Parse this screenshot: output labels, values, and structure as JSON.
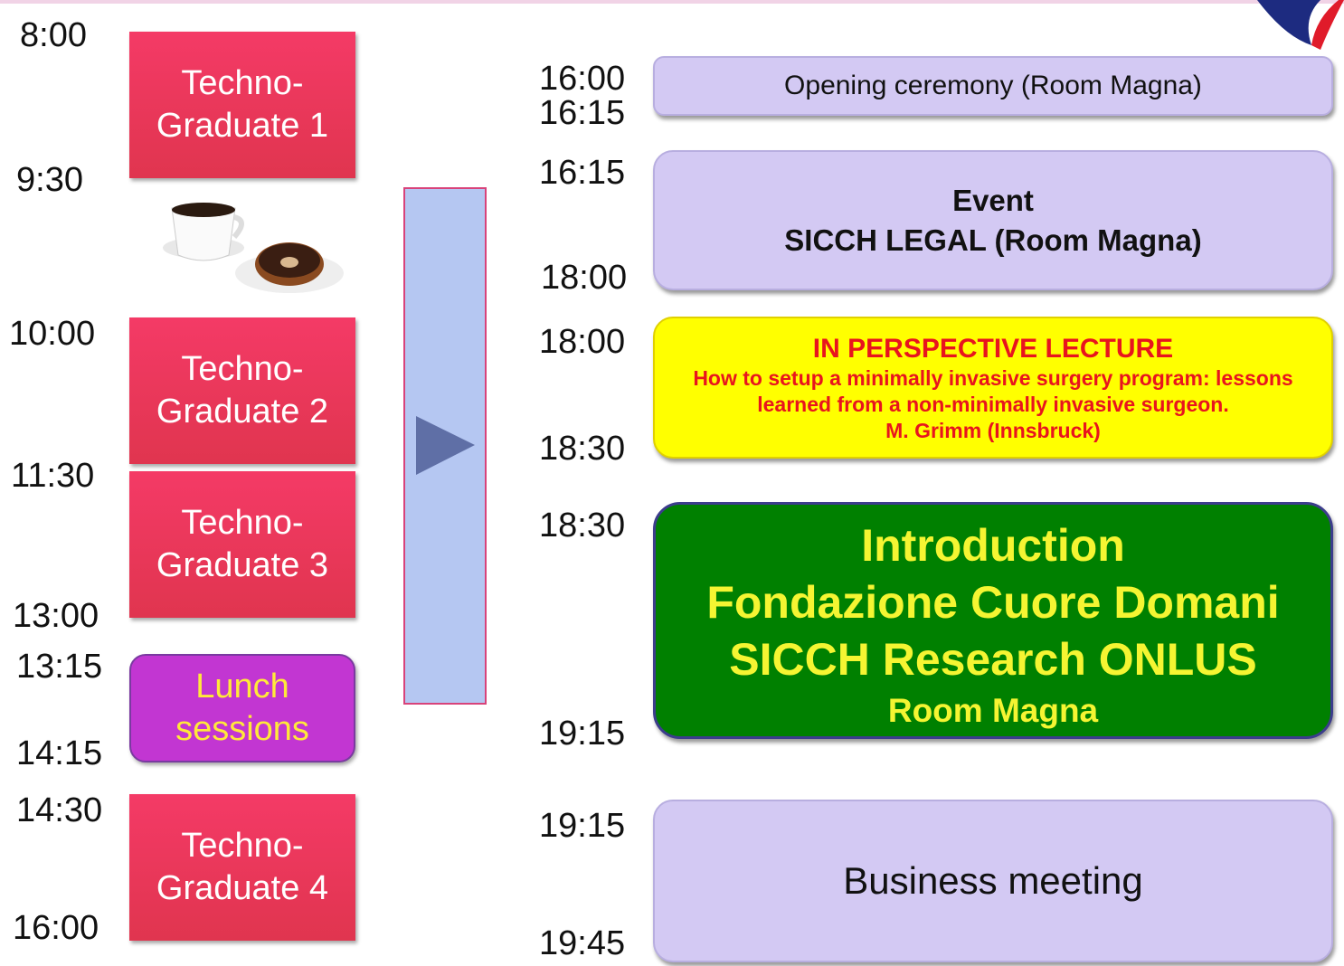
{
  "left": {
    "times": [
      "8:00",
      "9:30",
      "10:00",
      "11:30",
      "13:00",
      "13:15",
      "14:15",
      "14:30",
      "16:00"
    ],
    "sessions": [
      {
        "lines": [
          "Techno-",
          "Graduate 1"
        ]
      },
      {
        "lines": [
          "Techno-",
          "Graduate 2"
        ]
      },
      {
        "lines": [
          "Techno-",
          "Graduate 3"
        ]
      },
      {
        "lines": [
          "Lunch",
          "sessions"
        ]
      },
      {
        "lines": [
          "Techno-",
          "Graduate 4"
        ]
      }
    ]
  },
  "right": {
    "times": [
      "16:00",
      "16:15",
      "16:15",
      "18:00",
      "18:00",
      "18:30",
      "18:30",
      "19:15",
      "19:15",
      "19:45"
    ],
    "events": [
      {
        "lines": [
          "Opening ceremony (Room Magna)"
        ]
      },
      {
        "lines": [
          "Event",
          "SICCH LEGAL (Room Magna)"
        ]
      },
      {
        "title": "IN PERSPECTIVE LECTURE",
        "lines": [
          "How to setup a minimally invasive surgery program: lessons",
          "learned from a non-minimally invasive surgeon.",
          "M. Grimm (Innsbruck)"
        ]
      },
      {
        "lines": [
          "Introduction",
          "Fondazione Cuore Domani",
          "SICCH Research ONLUS"
        ],
        "subtitle": "Room Magna"
      },
      {
        "lines": [
          "Business meeting"
        ]
      }
    ]
  }
}
